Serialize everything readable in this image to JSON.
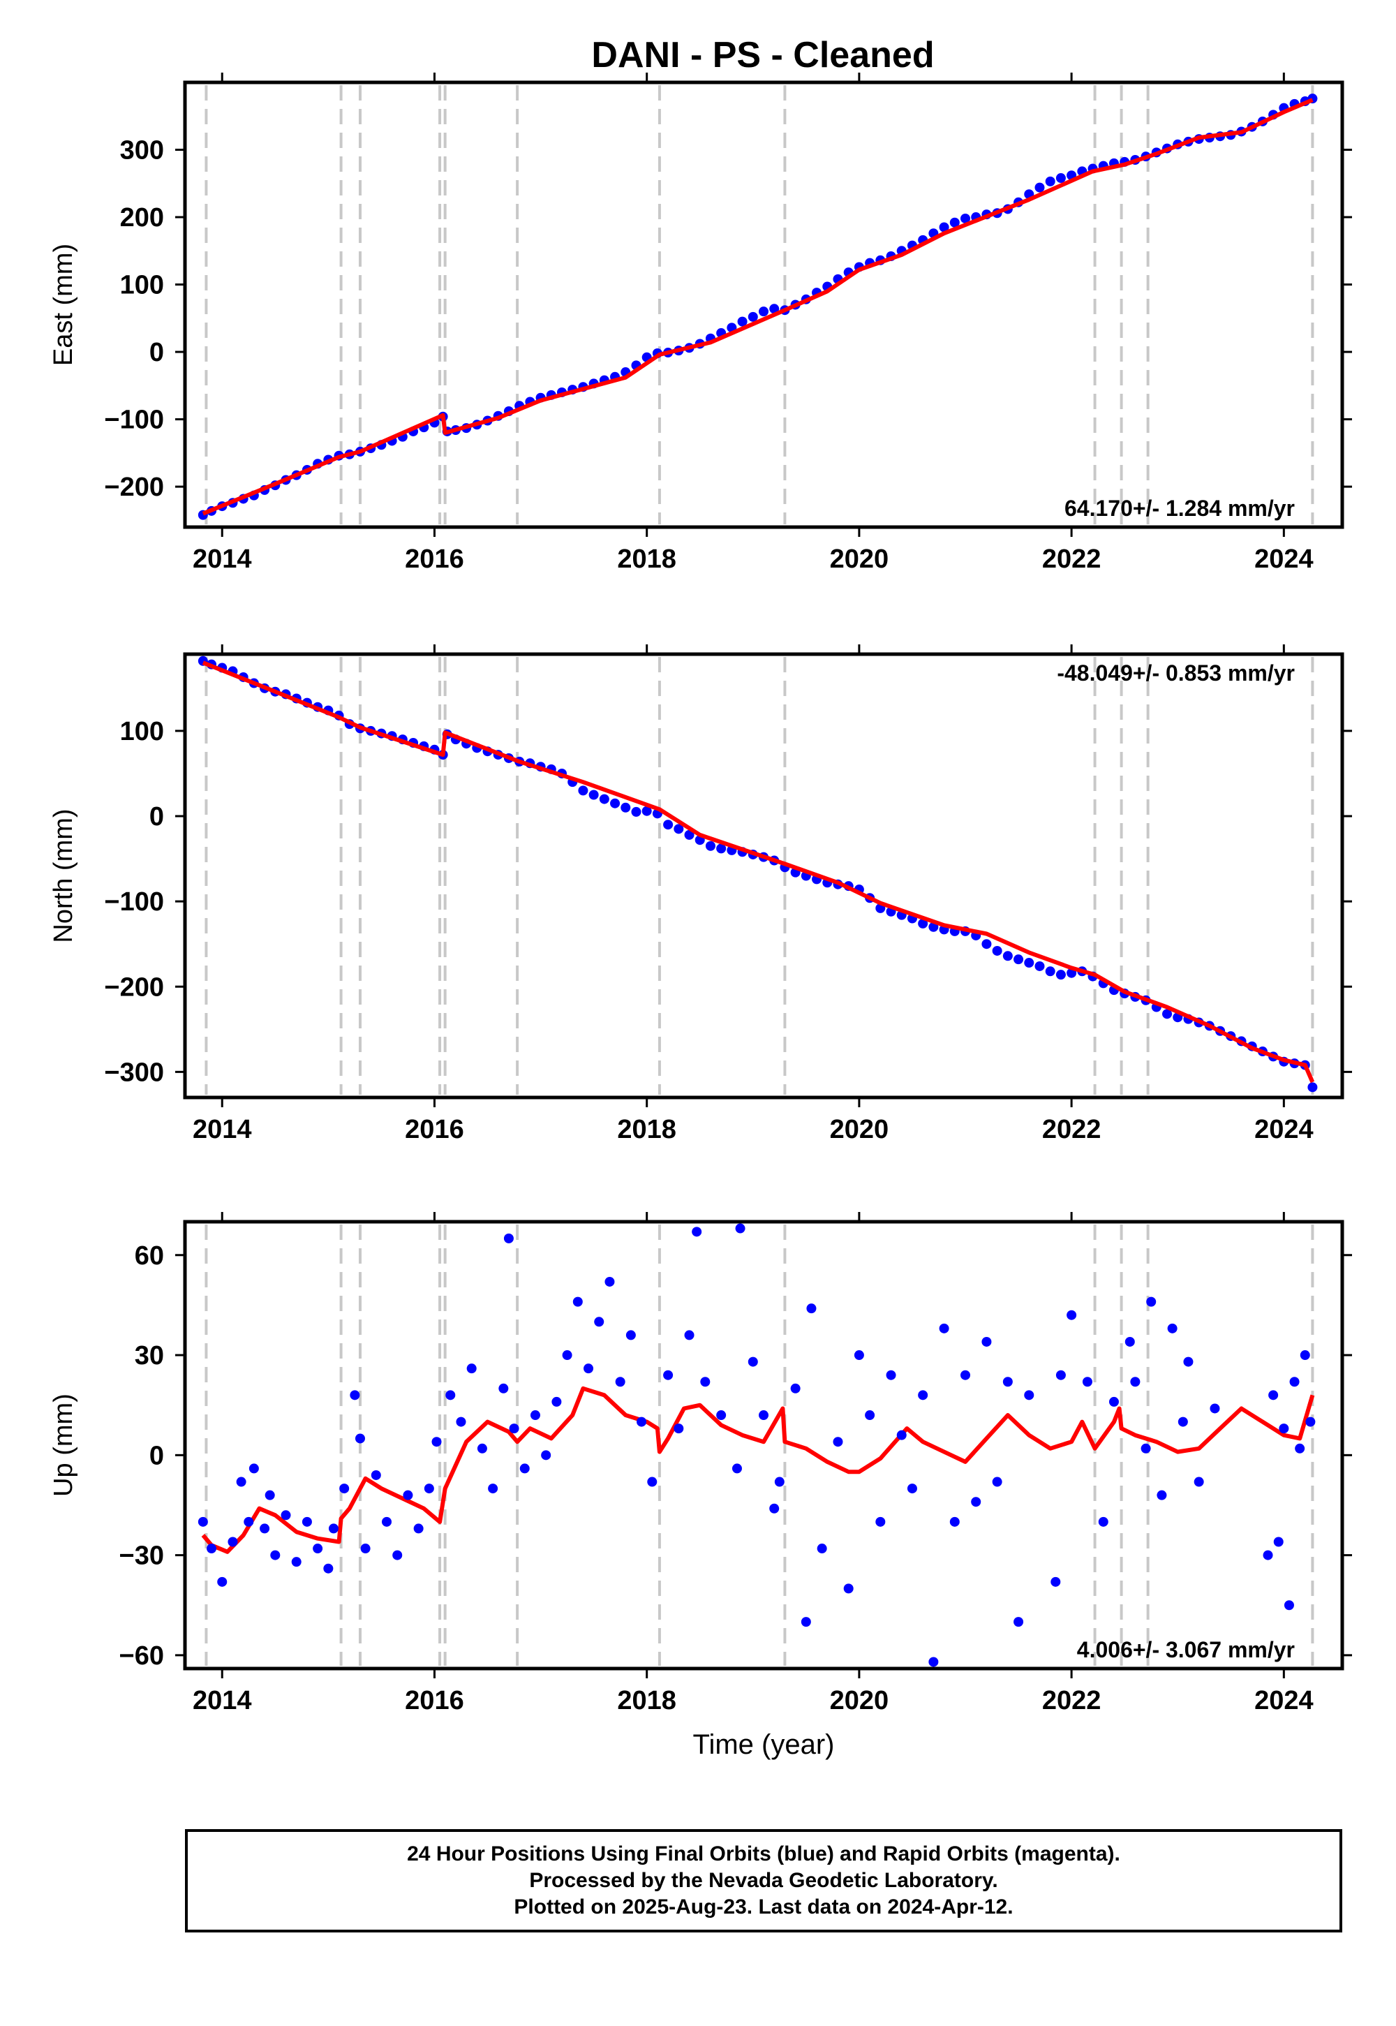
{
  "title": "DANI  - PS - Cleaned",
  "footer": {
    "lines": [
      "24 Hour Positions Using Final Orbits (blue) and Rapid Orbits (magenta).",
      "Processed by the Nevada Geodetic Laboratory.",
      "Plotted on 2025-Aug-23. Last data on 2024-Apr-12."
    ]
  },
  "colors": {
    "data": "#0000ff",
    "model": "#ff0000",
    "event_lines": "#c8c8c8",
    "frame": "#000000"
  },
  "chart_data": [
    {
      "type": "scatter",
      "title": "DANI  - PS - Cleaned",
      "ylabel": "East (mm)",
      "xlabel": "",
      "xlim": [
        2013.65,
        2024.55
      ],
      "ylim": [
        -260,
        400
      ],
      "xticks": [
        2014,
        2016,
        2018,
        2020,
        2022,
        2024
      ],
      "yticks": [
        -200,
        -100,
        0,
        100,
        200,
        300
      ],
      "rate_label": "64.170+/- 1.284 mm/yr",
      "rate_label_position": "bottom-right",
      "event_lines": [
        2013.85,
        2015.12,
        2015.3,
        2016.05,
        2016.1,
        2016.78,
        2018.12,
        2019.3,
        2022.22,
        2022.47,
        2022.72,
        2024.27
      ],
      "series": [
        {
          "kind": "points",
          "x": [
            2013.82,
            2013.9,
            2014.0,
            2014.1,
            2014.2,
            2014.3,
            2014.4,
            2014.5,
            2014.6,
            2014.7,
            2014.8,
            2014.9,
            2015.0,
            2015.1,
            2015.2,
            2015.3,
            2015.4,
            2015.5,
            2015.6,
            2015.7,
            2015.8,
            2015.9,
            2016.0,
            2016.08,
            2016.12,
            2016.2,
            2016.3,
            2016.4,
            2016.5,
            2016.6,
            2016.7,
            2016.8,
            2016.9,
            2017.0,
            2017.1,
            2017.2,
            2017.3,
            2017.4,
            2017.5,
            2017.6,
            2017.7,
            2017.8,
            2017.9,
            2018.0,
            2018.1,
            2018.2,
            2018.3,
            2018.4,
            2018.5,
            2018.6,
            2018.7,
            2018.8,
            2018.9,
            2019.0,
            2019.1,
            2019.2,
            2019.3,
            2019.4,
            2019.5,
            2019.6,
            2019.7,
            2019.8,
            2019.9,
            2020.0,
            2020.1,
            2020.2,
            2020.3,
            2020.4,
            2020.5,
            2020.6,
            2020.7,
            2020.8,
            2020.9,
            2021.0,
            2021.1,
            2021.2,
            2021.3,
            2021.4,
            2021.5,
            2021.6,
            2021.7,
            2021.8,
            2021.9,
            2022.0,
            2022.1,
            2022.2,
            2022.3,
            2022.4,
            2022.5,
            2022.6,
            2022.7,
            2022.8,
            2022.9,
            2023.0,
            2023.1,
            2023.2,
            2023.3,
            2023.4,
            2023.5,
            2023.6,
            2023.7,
            2023.8,
            2023.9,
            2024.0,
            2024.1,
            2024.2,
            2024.27
          ],
          "y": [
            -242,
            -236,
            -229,
            -224,
            -218,
            -213,
            -205,
            -198,
            -190,
            -183,
            -175,
            -166,
            -160,
            -154,
            -152,
            -148,
            -143,
            -138,
            -132,
            -126,
            -118,
            -112,
            -105,
            -96,
            -118,
            -116,
            -113,
            -108,
            -102,
            -95,
            -88,
            -80,
            -74,
            -68,
            -64,
            -60,
            -56,
            -52,
            -47,
            -42,
            -37,
            -30,
            -20,
            -8,
            -2,
            -1,
            2,
            6,
            12,
            20,
            28,
            36,
            45,
            52,
            60,
            64,
            62,
            70,
            78,
            88,
            97,
            108,
            118,
            126,
            132,
            136,
            142,
            150,
            158,
            166,
            176,
            185,
            192,
            198,
            200,
            204,
            206,
            212,
            222,
            234,
            244,
            253,
            258,
            262,
            268,
            272,
            276,
            280,
            282,
            285,
            290,
            296,
            302,
            308,
            312,
            316,
            318,
            320,
            322,
            327,
            334,
            342,
            352,
            362,
            368,
            372,
            376
          ]
        },
        {
          "kind": "line",
          "x": [
            2013.82,
            2014.5,
            2015.1,
            2015.3,
            2016.08,
            2016.1,
            2016.6,
            2017.0,
            2017.8,
            2018.12,
            2018.6,
            2019.3,
            2019.7,
            2020.0,
            2020.4,
            2020.8,
            2021.2,
            2021.6,
            2022.2,
            2022.5,
            2022.8,
            2023.2,
            2023.6,
            2024.0,
            2024.27
          ],
          "y": [
            -240,
            -196,
            -156,
            -148,
            -94,
            -120,
            -98,
            -72,
            -38,
            -4,
            14,
            62,
            90,
            122,
            144,
            176,
            201,
            226,
            268,
            278,
            294,
            318,
            326,
            356,
            374
          ]
        }
      ]
    },
    {
      "type": "scatter",
      "ylabel": "North (mm)",
      "xlabel": "",
      "xlim": [
        2013.65,
        2024.55
      ],
      "ylim": [
        -330,
        190
      ],
      "xticks": [
        2014,
        2016,
        2018,
        2020,
        2022,
        2024
      ],
      "yticks": [
        -300,
        -200,
        -100,
        0,
        100
      ],
      "rate_label": "-48.049+/- 0.853 mm/yr",
      "rate_label_position": "top-right",
      "event_lines": [
        2013.85,
        2015.12,
        2015.3,
        2016.05,
        2016.1,
        2016.78,
        2018.12,
        2019.3,
        2022.22,
        2022.47,
        2022.72,
        2024.27
      ],
      "series": [
        {
          "kind": "points",
          "x": [
            2013.82,
            2013.9,
            2014.0,
            2014.1,
            2014.2,
            2014.3,
            2014.4,
            2014.5,
            2014.6,
            2014.7,
            2014.8,
            2014.9,
            2015.0,
            2015.1,
            2015.2,
            2015.3,
            2015.4,
            2015.5,
            2015.6,
            2015.7,
            2015.8,
            2015.9,
            2016.0,
            2016.08,
            2016.12,
            2016.2,
            2016.3,
            2016.4,
            2016.5,
            2016.6,
            2016.7,
            2016.8,
            2016.9,
            2017.0,
            2017.1,
            2017.2,
            2017.3,
            2017.4,
            2017.5,
            2017.6,
            2017.7,
            2017.8,
            2017.9,
            2018.0,
            2018.1,
            2018.2,
            2018.3,
            2018.4,
            2018.5,
            2018.6,
            2018.7,
            2018.8,
            2018.9,
            2019.0,
            2019.1,
            2019.2,
            2019.3,
            2019.4,
            2019.5,
            2019.6,
            2019.7,
            2019.8,
            2019.9,
            2020.0,
            2020.1,
            2020.2,
            2020.3,
            2020.4,
            2020.5,
            2020.6,
            2020.7,
            2020.8,
            2020.9,
            2021.0,
            2021.1,
            2021.2,
            2021.3,
            2021.4,
            2021.5,
            2021.6,
            2021.7,
            2021.8,
            2021.9,
            2022.0,
            2022.1,
            2022.2,
            2022.3,
            2022.4,
            2022.5,
            2022.6,
            2022.7,
            2022.8,
            2022.9,
            2023.0,
            2023.1,
            2023.2,
            2023.3,
            2023.4,
            2023.5,
            2023.6,
            2023.7,
            2023.8,
            2023.9,
            2024.0,
            2024.1,
            2024.2,
            2024.27
          ],
          "y": [
            182,
            178,
            174,
            170,
            163,
            156,
            150,
            146,
            143,
            138,
            133,
            128,
            124,
            118,
            108,
            103,
            100,
            97,
            94,
            90,
            86,
            82,
            78,
            72,
            96,
            90,
            85,
            80,
            76,
            72,
            68,
            64,
            62,
            58,
            55,
            50,
            40,
            30,
            25,
            20,
            15,
            10,
            5,
            6,
            3,
            -10,
            -15,
            -22,
            -28,
            -35,
            -38,
            -40,
            -42,
            -45,
            -48,
            -52,
            -60,
            -66,
            -70,
            -74,
            -78,
            -80,
            -82,
            -86,
            -96,
            -108,
            -112,
            -116,
            -120,
            -126,
            -130,
            -133,
            -135,
            -135,
            -140,
            -150,
            -158,
            -164,
            -168,
            -172,
            -176,
            -182,
            -186,
            -184,
            -182,
            -188,
            -196,
            -204,
            -208,
            -212,
            -216,
            -224,
            -232,
            -236,
            -238,
            -242,
            -246,
            -252,
            -258,
            -264,
            -270,
            -276,
            -282,
            -288,
            -290,
            -292,
            -318
          ]
        },
        {
          "kind": "line",
          "x": [
            2013.82,
            2014.5,
            2015.1,
            2015.3,
            2016.08,
            2016.1,
            2016.8,
            2017.4,
            2018.12,
            2018.5,
            2019.3,
            2019.8,
            2020.2,
            2020.8,
            2021.2,
            2021.6,
            2022.0,
            2022.22,
            2022.5,
            2022.9,
            2023.3,
            2023.7,
            2024.0,
            2024.2,
            2024.27
          ],
          "y": [
            180,
            146,
            116,
            104,
            72,
            98,
            64,
            40,
            8,
            -22,
            -56,
            -78,
            -102,
            -128,
            -138,
            -160,
            -178,
            -186,
            -206,
            -224,
            -246,
            -272,
            -286,
            -292,
            -312
          ]
        }
      ]
    },
    {
      "type": "scatter",
      "ylabel": "Up (mm)",
      "xlabel": "Time (year)",
      "xlim": [
        2013.65,
        2024.55
      ],
      "ylim": [
        -64,
        70
      ],
      "xticks": [
        2014,
        2016,
        2018,
        2020,
        2022,
        2024
      ],
      "yticks": [
        -60,
        -30,
        0,
        30,
        60
      ],
      "rate_label": "4.006+/- 3.067 mm/yr",
      "rate_label_position": "bottom-right",
      "event_lines": [
        2013.85,
        2015.12,
        2015.3,
        2016.05,
        2016.1,
        2016.78,
        2018.12,
        2019.3,
        2022.22,
        2022.47,
        2022.72,
        2024.27
      ],
      "series": [
        {
          "kind": "line",
          "x": [
            2013.82,
            2013.9,
            2014.05,
            2014.2,
            2014.35,
            2014.5,
            2014.7,
            2014.9,
            2015.1,
            2015.12,
            2015.2,
            2015.35,
            2015.5,
            2015.7,
            2015.9,
            2016.05,
            2016.1,
            2016.3,
            2016.5,
            2016.7,
            2016.78,
            2016.9,
            2017.1,
            2017.3,
            2017.4,
            2017.6,
            2017.8,
            2018.0,
            2018.1,
            2018.12,
            2018.2,
            2018.35,
            2018.5,
            2018.7,
            2018.9,
            2019.1,
            2019.28,
            2019.3,
            2019.5,
            2019.7,
            2019.9,
            2020.0,
            2020.2,
            2020.45,
            2020.6,
            2020.8,
            2021.0,
            2021.2,
            2021.4,
            2021.6,
            2021.8,
            2022.0,
            2022.1,
            2022.22,
            2022.4,
            2022.45,
            2022.47,
            2022.6,
            2022.8,
            2023.0,
            2023.2,
            2023.4,
            2023.6,
            2023.8,
            2024.0,
            2024.15,
            2024.27
          ],
          "y": [
            -24,
            -27,
            -29,
            -24,
            -16,
            -18,
            -23,
            -25,
            -26,
            -19,
            -16,
            -7,
            -10,
            -13,
            -16,
            -20,
            -10,
            4,
            10,
            7,
            4,
            8,
            5,
            12,
            20,
            18,
            12,
            10,
            8,
            1,
            5,
            14,
            15,
            9,
            6,
            4,
            14,
            4,
            2,
            -2,
            -5,
            -5,
            -1,
            8,
            4,
            1,
            -2,
            5,
            12,
            6,
            2,
            4,
            10,
            2,
            10,
            14,
            8,
            6,
            4,
            1,
            2,
            8,
            14,
            10,
            6,
            5,
            18
          ]
        },
        {
          "kind": "points",
          "x": [
            2013.82,
            2013.9,
            2014.0,
            2014.1,
            2014.18,
            2014.25,
            2014.3,
            2014.4,
            2014.45,
            2014.5,
            2014.6,
            2014.7,
            2014.8,
            2014.9,
            2015.0,
            2015.05,
            2015.15,
            2015.25,
            2015.3,
            2015.35,
            2015.45,
            2015.55,
            2015.65,
            2015.75,
            2015.85,
            2015.95,
            2016.02,
            2016.15,
            2016.25,
            2016.35,
            2016.45,
            2016.55,
            2016.65,
            2016.7,
            2016.75,
            2016.85,
            2016.95,
            2017.05,
            2017.15,
            2017.25,
            2017.35,
            2017.45,
            2017.55,
            2017.65,
            2017.75,
            2017.85,
            2017.95,
            2018.05,
            2018.2,
            2018.3,
            2018.4,
            2018.47,
            2018.55,
            2018.7,
            2018.85,
            2018.88,
            2019.0,
            2019.1,
            2019.2,
            2019.25,
            2019.4,
            2019.5,
            2019.55,
            2019.65,
            2019.8,
            2019.9,
            2020.0,
            2020.1,
            2020.2,
            2020.3,
            2020.4,
            2020.5,
            2020.6,
            2020.7,
            2020.8,
            2020.9,
            2021.0,
            2021.1,
            2021.2,
            2021.3,
            2021.4,
            2021.5,
            2021.6,
            2021.85,
            2021.9,
            2022.0,
            2022.15,
            2022.3,
            2022.4,
            2022.55,
            2022.6,
            2022.7,
            2022.75,
            2022.85,
            2022.95,
            2023.05,
            2023.1,
            2023.2,
            2023.35,
            2023.85,
            2023.9,
            2023.95,
            2024.0,
            2024.05,
            2024.1,
            2024.15,
            2024.2,
            2024.25
          ],
          "y": [
            -20,
            -28,
            -38,
            -26,
            -8,
            -20,
            -4,
            -22,
            -12,
            -30,
            -18,
            -32,
            -20,
            -28,
            -34,
            -22,
            -10,
            18,
            5,
            -28,
            -6,
            -20,
            -30,
            -12,
            -22,
            -10,
            4,
            18,
            10,
            26,
            2,
            -10,
            20,
            65,
            8,
            -4,
            12,
            0,
            16,
            30,
            46,
            26,
            40,
            52,
            22,
            36,
            10,
            -8,
            24,
            8,
            36,
            67,
            22,
            12,
            -4,
            68,
            28,
            12,
            -16,
            -8,
            20,
            -50,
            44,
            -28,
            4,
            -40,
            30,
            12,
            -20,
            24,
            6,
            -10,
            18,
            -62,
            38,
            -20,
            24,
            -14,
            34,
            -8,
            22,
            -50,
            18,
            -38,
            24,
            42,
            22,
            -20,
            16,
            34,
            22,
            2,
            46,
            -12,
            38,
            10,
            28,
            -8,
            14,
            -30,
            18,
            -26,
            8,
            -45,
            22,
            2,
            30,
            10
          ]
        }
      ]
    }
  ]
}
